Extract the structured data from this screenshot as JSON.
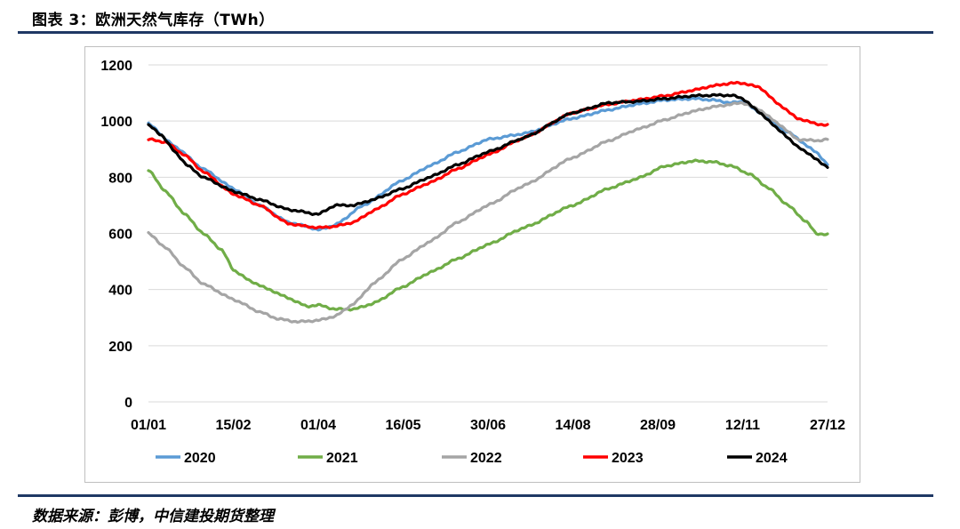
{
  "figure": {
    "title": "图表 3：欧洲天然气库存（TWh）",
    "source": "数据来源：彭博，中信建投期货整理"
  },
  "chart_data": {
    "type": "line",
    "title": "",
    "xlabel": "",
    "ylabel": "",
    "ylim": [
      0,
      1200
    ],
    "yticks": [
      0,
      200,
      400,
      600,
      800,
      1000,
      1200
    ],
    "xlim": [
      1,
      361
    ],
    "x_tick_labels": [
      "01/01",
      "15/02",
      "01/04",
      "16/05",
      "30/06",
      "14/08",
      "28/09",
      "12/11",
      "27/12"
    ],
    "x_tick_days": [
      1,
      46,
      91,
      136,
      181,
      226,
      271,
      316,
      361
    ],
    "x_unit": "day of year",
    "grid": "horizontal",
    "legend_position": "bottom",
    "series": [
      {
        "name": "2020",
        "color": "#5b9bd5",
        "x": [
          1,
          15,
          30,
          46,
          60,
          75,
          85,
          91,
          100,
          115,
          136,
          150,
          165,
          181,
          200,
          226,
          245,
          260,
          275,
          290,
          300,
          310,
          316,
          325,
          340,
          355,
          361
        ],
        "y": [
          990,
          910,
          830,
          760,
          700,
          640,
          625,
          612,
          630,
          700,
          790,
          840,
          890,
          935,
          955,
          1010,
          1040,
          1060,
          1075,
          1080,
          1075,
          1065,
          1070,
          1030,
          960,
          890,
          845
        ]
      },
      {
        "name": "2021",
        "color": "#70ad47",
        "x": [
          1,
          10,
          20,
          30,
          40,
          46,
          55,
          65,
          75,
          85,
          91,
          100,
          110,
          120,
          136,
          150,
          165,
          181,
          200,
          226,
          245,
          260,
          275,
          290,
          300,
          310,
          320,
          330,
          340,
          350,
          355,
          361
        ],
        "y": [
          825,
          750,
          670,
          600,
          540,
          470,
          430,
          400,
          370,
          340,
          345,
          330,
          330,
          350,
          410,
          460,
          510,
          560,
          620,
          700,
          760,
          795,
          840,
          858,
          855,
          840,
          810,
          760,
          700,
          640,
          600,
          595
        ]
      },
      {
        "name": "2022",
        "color": "#a5a5a5",
        "x": [
          1,
          10,
          20,
          30,
          46,
          60,
          70,
          80,
          91,
          100,
          110,
          120,
          136,
          150,
          165,
          181,
          200,
          226,
          245,
          260,
          275,
          290,
          300,
          310,
          316,
          325,
          335,
          345,
          355,
          361
        ],
        "y": [
          600,
          550,
          480,
          420,
          365,
          320,
          295,
          285,
          290,
          305,
          350,
          420,
          510,
          570,
          640,
          700,
          770,
          870,
          930,
          970,
          1005,
          1035,
          1050,
          1060,
          1065,
          1040,
          990,
          935,
          930,
          935
        ]
      },
      {
        "name": "2023",
        "color": "#ff0000",
        "x": [
          1,
          10,
          20,
          30,
          46,
          60,
          75,
          85,
          91,
          100,
          110,
          120,
          136,
          150,
          165,
          181,
          200,
          226,
          245,
          260,
          275,
          290,
          300,
          310,
          316,
          325,
          335,
          345,
          355,
          361
        ],
        "y": [
          935,
          925,
          880,
          820,
          740,
          700,
          635,
          625,
          620,
          625,
          640,
          680,
          740,
          780,
          830,
          880,
          940,
          1030,
          1060,
          1075,
          1090,
          1110,
          1125,
          1135,
          1135,
          1120,
          1060,
          1010,
          990,
          985
        ]
      },
      {
        "name": "2024",
        "color": "#000000",
        "x": [
          1,
          8,
          15,
          22,
          30,
          46,
          60,
          75,
          91,
          100,
          110,
          120,
          136,
          150,
          165,
          181,
          200,
          226,
          245,
          260,
          275,
          290,
          300,
          310,
          316,
          325,
          335,
          345,
          355,
          361
        ],
        "y": [
          985,
          950,
          890,
          840,
          800,
          750,
          720,
          685,
          668,
          700,
          700,
          720,
          760,
          800,
          845,
          890,
          940,
          1030,
          1065,
          1070,
          1080,
          1090,
          1092,
          1092,
          1080,
          1030,
          970,
          910,
          865,
          835
        ]
      }
    ]
  }
}
